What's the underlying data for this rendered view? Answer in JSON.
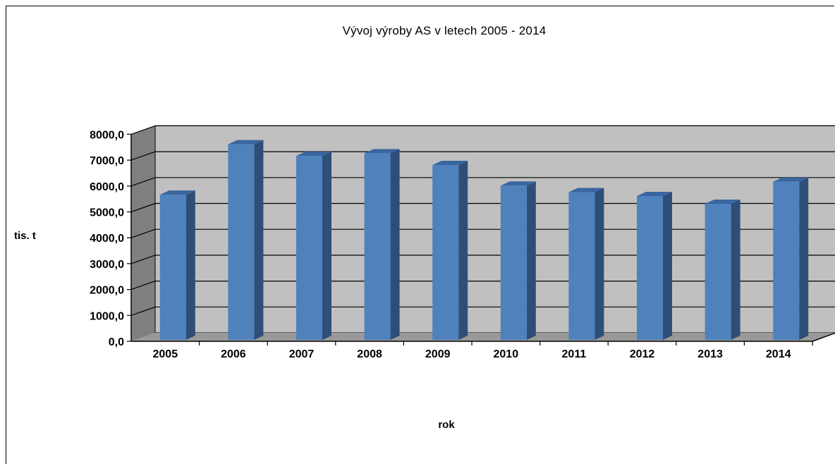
{
  "chart_data": {
    "type": "bar",
    "title": "Vývoj výroby AS v letech 2005 - 2014",
    "xlabel": "rok",
    "ylabel": "tis. t",
    "categories": [
      "2005",
      "2006",
      "2007",
      "2008",
      "2009",
      "2010",
      "2011",
      "2012",
      "2013",
      "2014"
    ],
    "values": [
      5500,
      7450,
      7000,
      7100,
      6650,
      5850,
      5600,
      5450,
      5150,
      6000
    ],
    "ylim": [
      0,
      8000
    ],
    "yticks": [
      "0,0",
      "1000,0",
      "2000,0",
      "3000,0",
      "4000,0",
      "5000,0",
      "6000,0",
      "7000,0",
      "8000,0"
    ],
    "grid": true,
    "legend": "none",
    "style": "3d-column",
    "colors": {
      "bar_front": "#4f81bd",
      "bar_side": "#2e4e78",
      "bar_top": "#3a66a0",
      "wall": "#c0c0c0",
      "side_wall": "#808080",
      "floor": "#999999"
    }
  }
}
